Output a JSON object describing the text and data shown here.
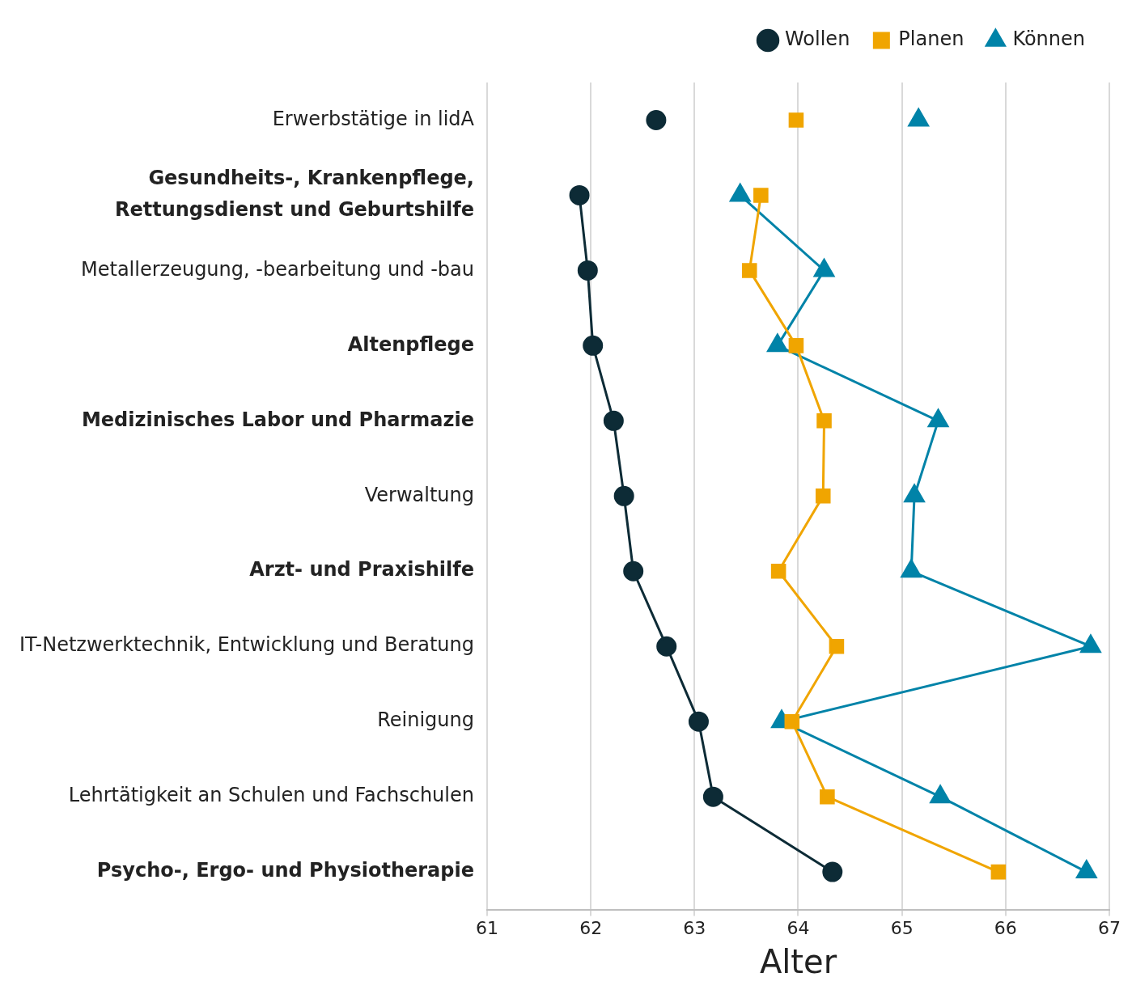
{
  "chart_data": {
    "type": "line",
    "orientation": "horizontal",
    "xlabel": "Alter",
    "categories": [
      "Erwerbstätige in lidA",
      "Gesundheits-, Krankenpflege,\nRettungsdienst und Geburtshilfe",
      "Metallerzeugung, -bearbeitung und -bau",
      "Altenpflege",
      "Medizinisches Labor und Pharmazie",
      "Verwaltung",
      "Arzt- und Praxishilfe",
      "IT-Netzwerktechnik, Entwicklung und Beratung",
      "Reinigung",
      "Lehrtätigkeit an Schulen und Fachschulen",
      "Psycho-, Ergo- und Physiotherapie"
    ],
    "series": [
      {
        "name": "Wollen",
        "color": "#0d2b36",
        "marker": "circle",
        "values": [
          null,
          61.89,
          61.97,
          62.02,
          62.22,
          62.32,
          62.41,
          62.73,
          63.04,
          63.18,
          64.33
        ]
      },
      {
        "name": "Planen",
        "color": "#f0a500",
        "marker": "square",
        "values": [
          null,
          63.64,
          63.53,
          63.98,
          64.25,
          64.24,
          63.81,
          64.37,
          63.94,
          64.28,
          65.93
        ]
      },
      {
        "name": "Können",
        "color": "#0083a8",
        "marker": "triangle",
        "values": [
          null,
          63.44,
          64.25,
          63.8,
          65.35,
          65.12,
          65.09,
          66.82,
          63.84,
          65.37,
          66.78
        ]
      },
      {
        "color": "#0d2b36",
        "marker": "circle",
        "values": [
          62.63,
          null,
          null,
          null,
          null,
          null,
          null,
          null,
          null,
          null,
          null
        ]
      },
      {
        "color": "#f0a500",
        "marker": "square",
        "values": [
          63.98,
          null,
          null,
          null,
          null,
          null,
          null,
          null,
          null,
          null,
          null
        ]
      },
      {
        "color": "#0083a8",
        "marker": "triangle",
        "values": [
          65.16,
          null,
          null,
          null,
          null,
          null,
          null,
          null,
          null,
          null,
          null
        ]
      }
    ],
    "xlim": [
      61,
      67
    ],
    "xticks": [
      61,
      62,
      63,
      64,
      65,
      66,
      67
    ],
    "grid": "x",
    "legend": "top"
  }
}
